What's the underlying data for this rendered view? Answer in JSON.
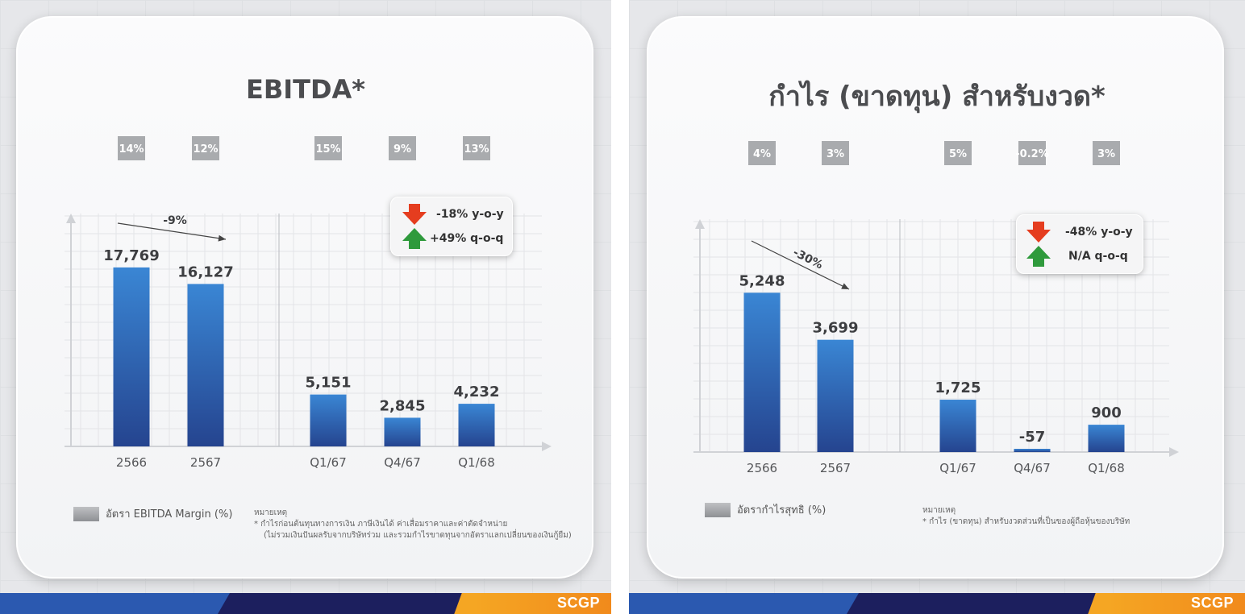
{
  "brand": "SCGP",
  "left_panel": {
    "title": "EBITDA*",
    "legend_label": "อัตรา EBITDA Margin (%)",
    "note_heading": "หมายเหตุ",
    "note_lines": [
      "*  กำไรก่อนต้นทุนทางการเงิน ภาษีเงินได้ ค่าเสื่อมราคาและค่าตัดจำหน่าย",
      "(ไม่รวมเงินปันผลรับจากบริษัทร่วม และรวมกำไรขาดทุนจากอัตราแลกเปลี่ยนของเงินกู้ยืม)"
    ],
    "callout": {
      "yoy": "-18% y-o-y",
      "qoq": "+49% q-o-q",
      "yoy_direction": "down",
      "qoq_direction": "up"
    },
    "trend_label": "-9%"
  },
  "right_panel": {
    "title": "กำไร (ขาดทุน) สำหรับงวด*",
    "legend_label": "อัตรากำไรสุทธิ (%)",
    "note_heading": "หมายเหตุ",
    "note_lines": [
      "*  กำไร (ขาดทุน) สำหรับงวดส่วนที่เป็นของผู้ถือหุ้นของบริษัท"
    ],
    "callout": {
      "yoy": "-48% y-o-y",
      "qoq": "N/A q-o-q",
      "yoy_direction": "down",
      "qoq_direction": "up"
    },
    "trend_label": "-30%"
  },
  "colors": {
    "bar_top": "#3a86d4",
    "bar_bottom": "#25448f",
    "title": "#4b4c4f",
    "arrow_down": "#e53d1f",
    "arrow_up": "#2f9a3c",
    "margin_box": "#a9abae"
  },
  "chart_data": [
    {
      "type": "bar",
      "title": "EBITDA*",
      "categories": [
        "2566",
        "2567",
        "Q1/67",
        "Q4/67",
        "Q1/68"
      ],
      "values": [
        17769,
        16127,
        5151,
        2845,
        4232
      ],
      "value_labels": [
        "17,769",
        "16,127",
        "5,151",
        "2,845",
        "4,232"
      ],
      "margins": [
        "14%",
        "12%",
        "15%",
        "9%",
        "13%"
      ],
      "annual_change": "-9%",
      "ylim": [
        0,
        20000
      ],
      "legend": "อัตรา EBITDA Margin (%)"
    },
    {
      "type": "bar",
      "title": "กำไร (ขาดทุน) สำหรับงวด*",
      "categories": [
        "2566",
        "2567",
        "Q1/67",
        "Q4/67",
        "Q1/68"
      ],
      "values": [
        5248,
        3699,
        1725,
        -57,
        900
      ],
      "value_labels": [
        "5,248",
        "3,699",
        "1,725",
        "-57",
        "900"
      ],
      "margins": [
        "4%",
        "3%",
        "5%",
        "-0.2%",
        "3%"
      ],
      "annual_change": "-30%",
      "ylim": [
        0,
        6000
      ],
      "legend": "อัตรากำไรสุทธิ (%)"
    }
  ]
}
